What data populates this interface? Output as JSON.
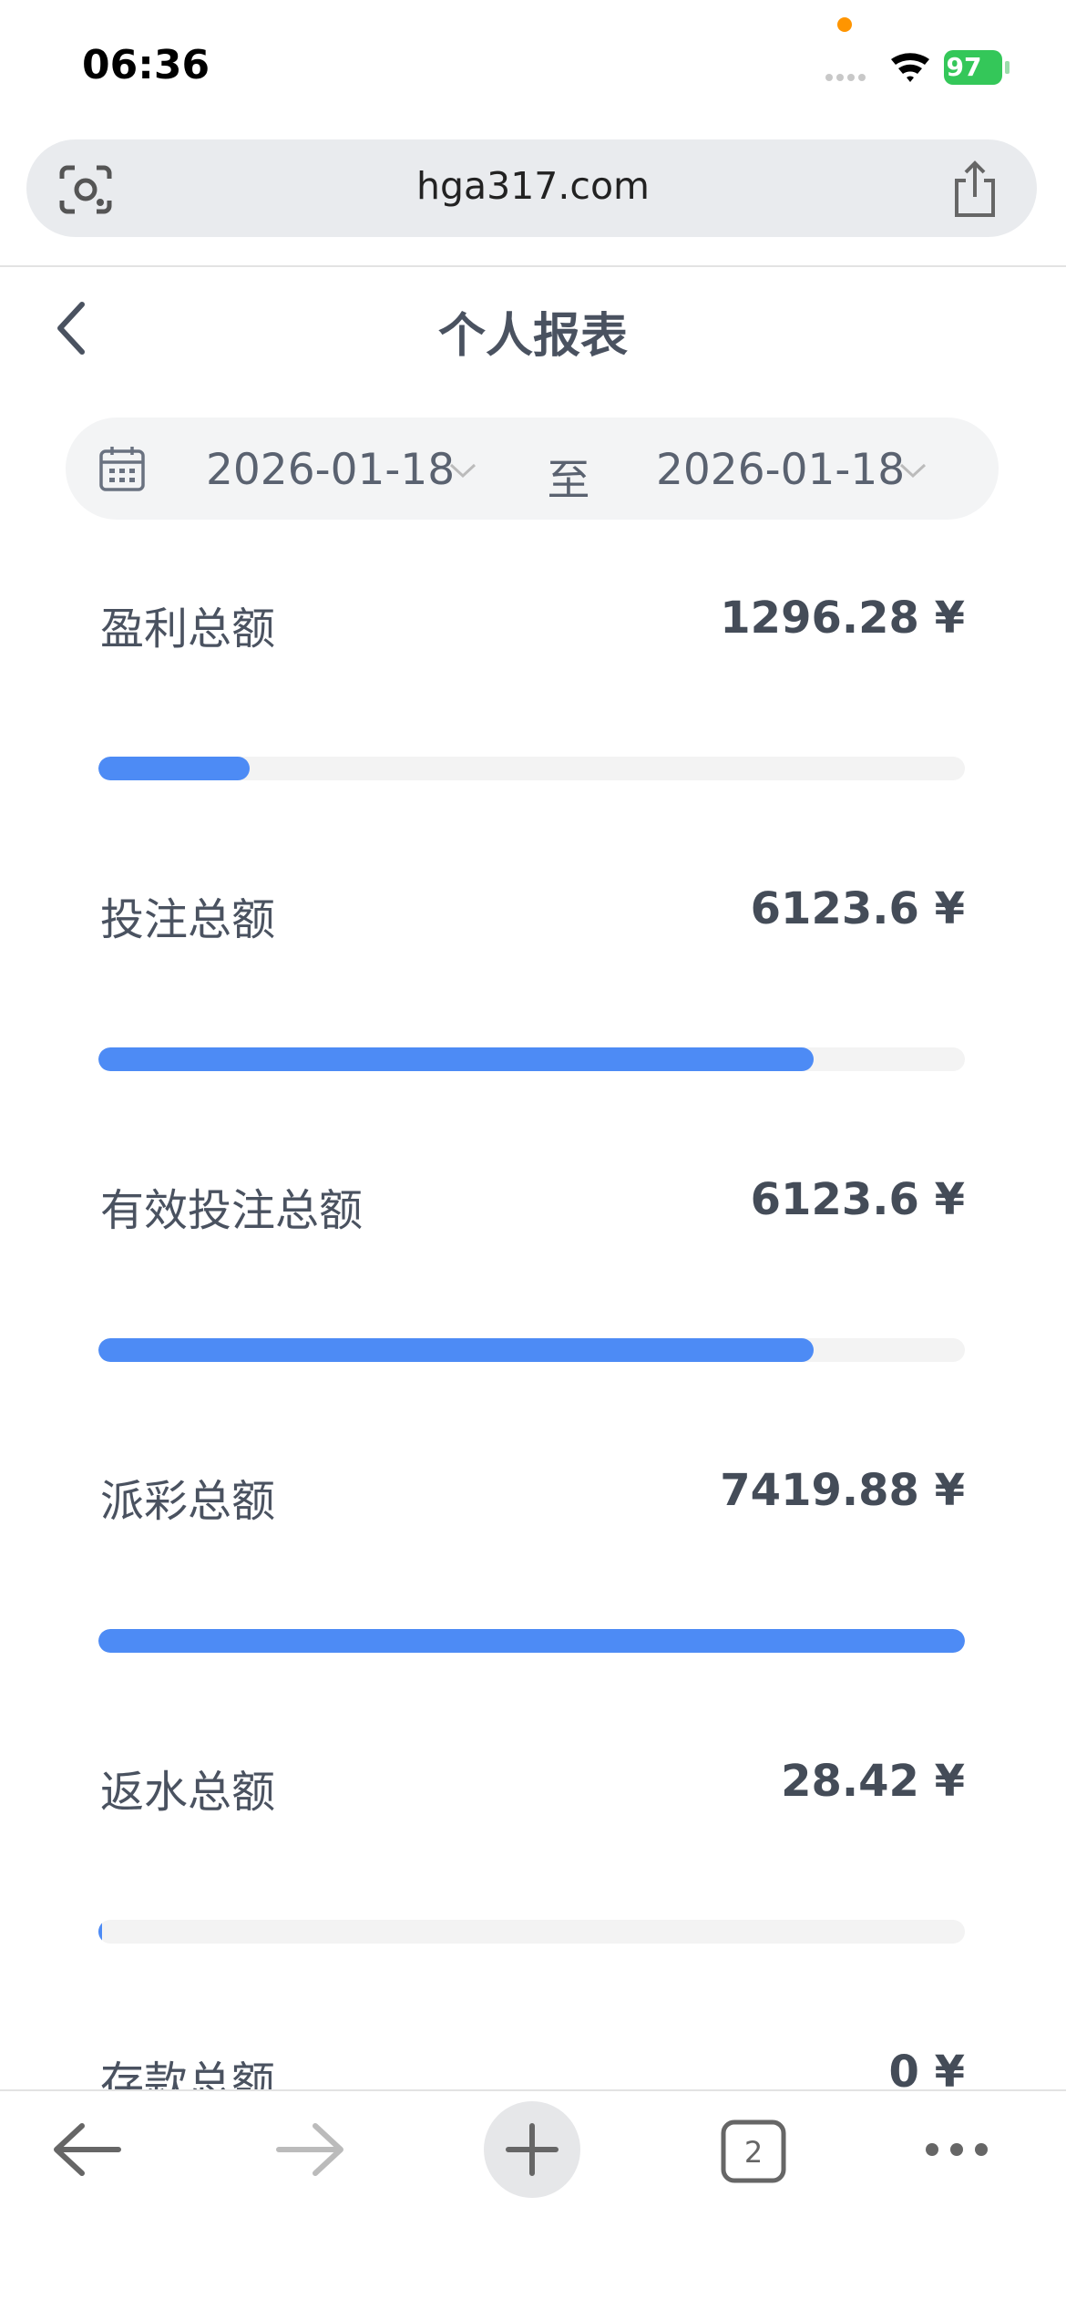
{
  "status_bar": {
    "time": "06:36",
    "battery": "97"
  },
  "browser": {
    "url": "hga317.com",
    "tab_count": "2"
  },
  "header": {
    "title": "个人报表"
  },
  "date_range": {
    "start": "2026-01-18",
    "separator": "至",
    "end": "2026-01-18"
  },
  "report": {
    "rows": [
      {
        "label": "盈利总额",
        "value": 1296.28,
        "value_label": "1296.28 ¥"
      },
      {
        "label": "投注总额",
        "value": 6123.6,
        "value_label": "6123.6 ¥"
      },
      {
        "label": "有效投注总额",
        "value": 6123.6,
        "value_label": "6123.6 ¥"
      },
      {
        "label": "派彩总额",
        "value": 7419.88,
        "value_label": "7419.88 ¥"
      },
      {
        "label": "返水总额",
        "value": 28.42,
        "value_label": "28.42 ¥"
      },
      {
        "label": "存款总额",
        "value": 0,
        "value_label": "0 ¥"
      }
    ]
  }
}
